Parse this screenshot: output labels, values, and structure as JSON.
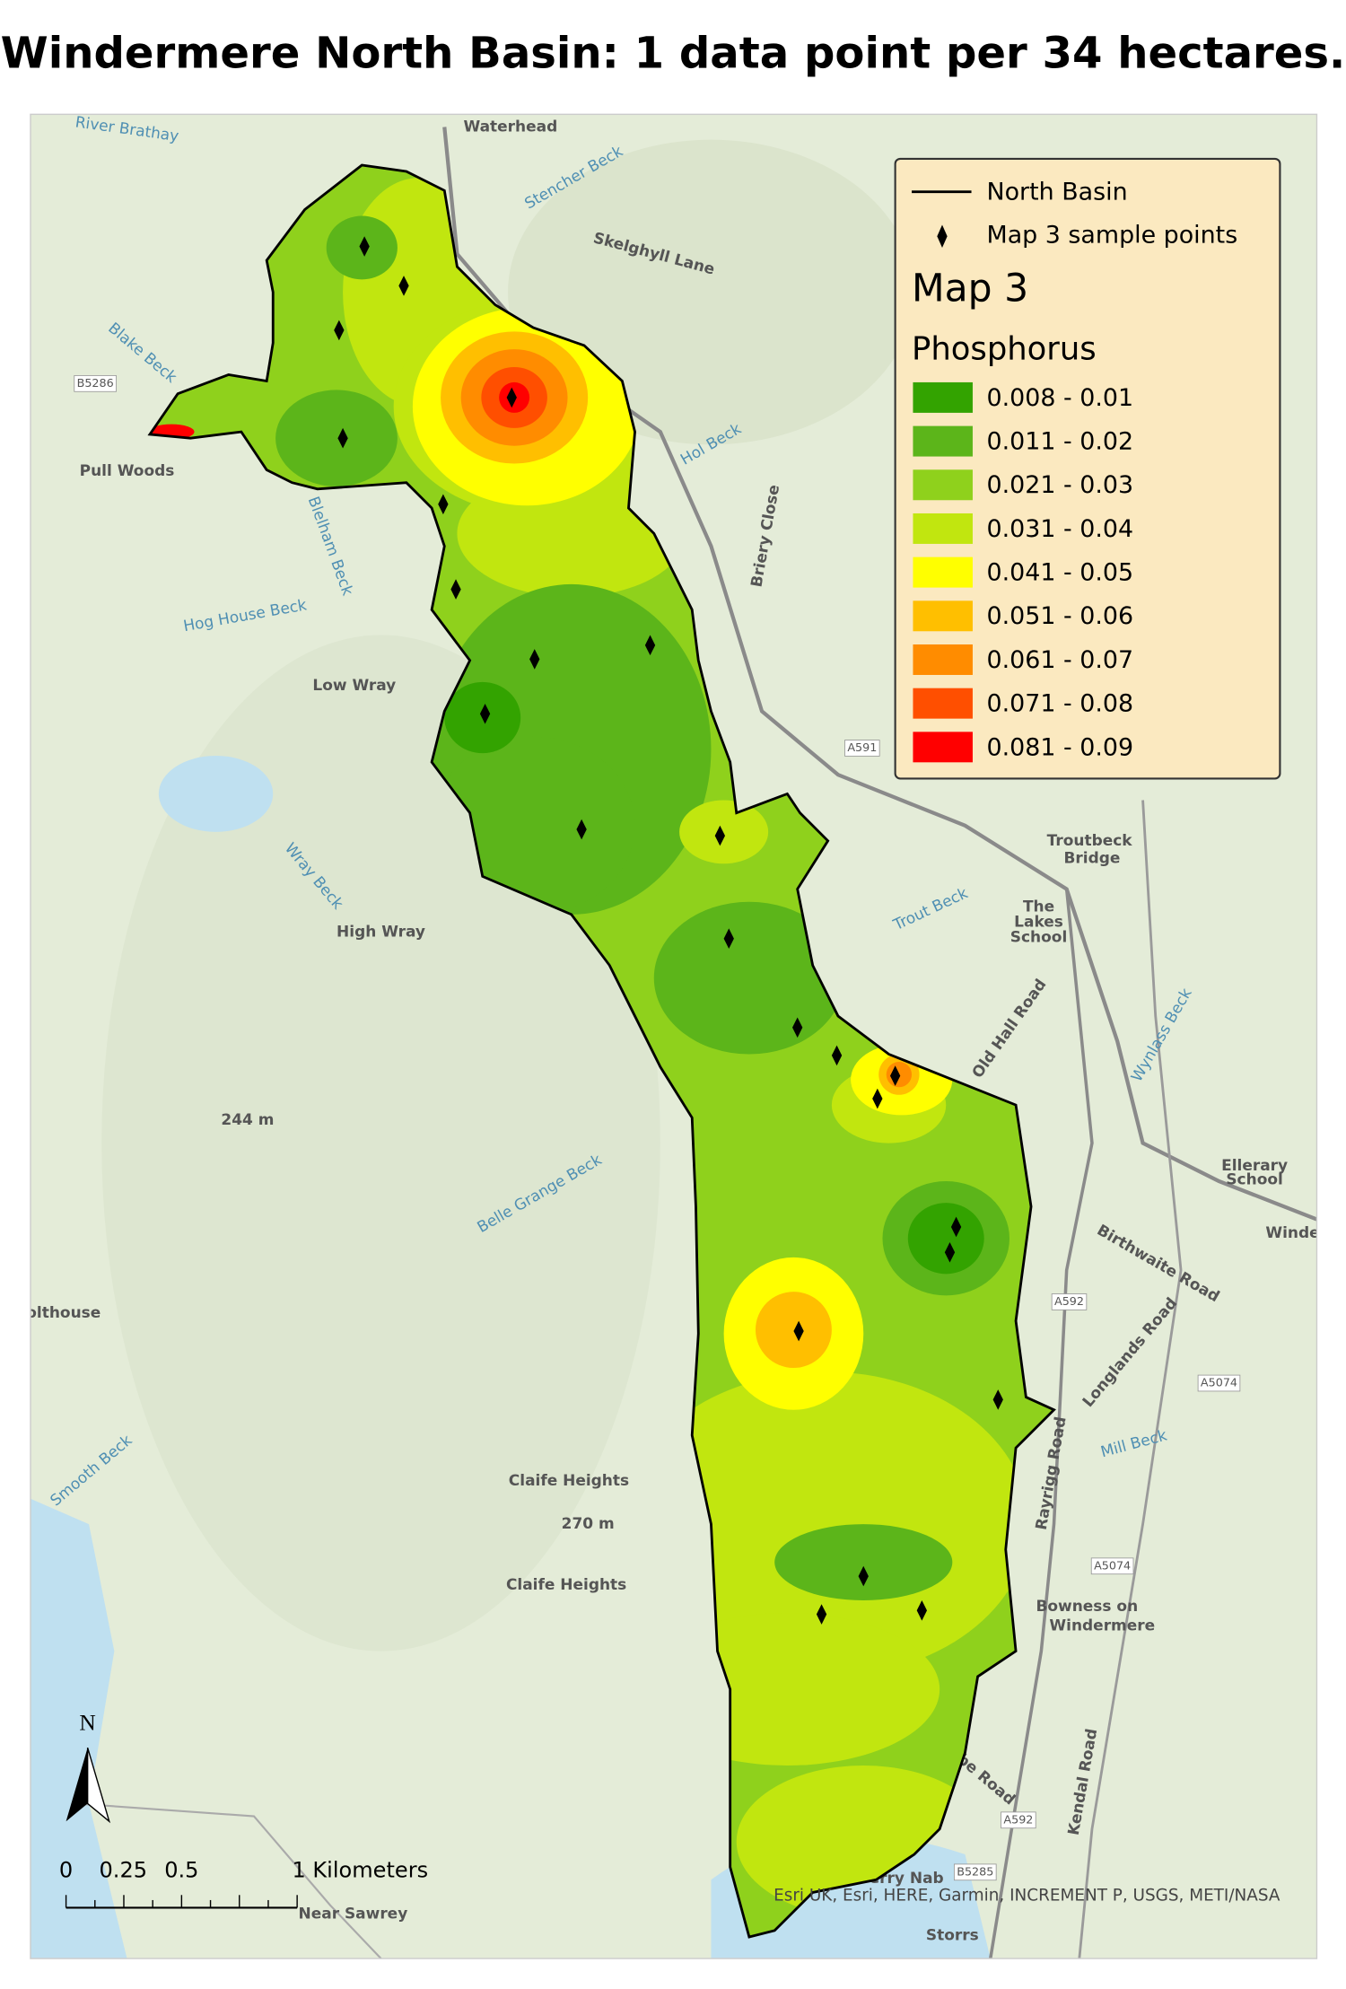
{
  "title": "Windermere North Basin: 1 data point per 34 hectares.",
  "legend": {
    "line_label": "North Basin",
    "points_label": "Map 3 sample points",
    "map_title": "Map 3",
    "field": "Phosphorus",
    "classes": [
      {
        "label": "0.008 - 0.01",
        "color": "#33a300"
      },
      {
        "label": "0.011 - 0.02",
        "color": "#5cb51a"
      },
      {
        "label": "0.021 - 0.03",
        "color": "#8fd11c"
      },
      {
        "label": "0.031 - 0.04",
        "color": "#c1e60f"
      },
      {
        "label": "0.041 - 0.05",
        "color": "#ffff00"
      },
      {
        "label": "0.051 - 0.06",
        "color": "#ffbf00"
      },
      {
        "label": "0.061 - 0.07",
        "color": "#ff8c00"
      },
      {
        "label": "0.071 - 0.08",
        "color": "#ff4f00"
      },
      {
        "label": "0.081 - 0.09",
        "color": "#ff0000"
      }
    ]
  },
  "north_arrow": "N",
  "scale_bar": {
    "labels": [
      "0",
      "0.25",
      "0.5",
      "1 Kilometers"
    ]
  },
  "attribution": "Esri UK, Esri, HERE, Garmin, INCREMENT P, USGS, METI/NASA",
  "place_labels": [
    {
      "text": "River Brathay",
      "kind": "water"
    },
    {
      "text": "Waterhead",
      "kind": "place"
    },
    {
      "text": "Stencher Beck",
      "kind": "water"
    },
    {
      "text": "Skelghyll Lane",
      "kind": "place"
    },
    {
      "text": "Blake Beck",
      "kind": "water"
    },
    {
      "text": "B5286",
      "kind": "road"
    },
    {
      "text": "Pull Woods",
      "kind": "place"
    },
    {
      "text": "Hol Beck",
      "kind": "water"
    },
    {
      "text": "Briery Close",
      "kind": "place"
    },
    {
      "text": "Blelham Beck",
      "kind": "water"
    },
    {
      "text": "Hog House Beck",
      "kind": "water"
    },
    {
      "text": "Low Wray",
      "kind": "place"
    },
    {
      "text": "A591",
      "kind": "road"
    },
    {
      "text": "Troutbeck",
      "kind": "place"
    },
    {
      "text": "Bridge",
      "kind": "place"
    },
    {
      "text": "The",
      "kind": "place"
    },
    {
      "text": "Lakes",
      "kind": "place"
    },
    {
      "text": "School",
      "kind": "place"
    },
    {
      "text": "Trout Beck",
      "kind": "water"
    },
    {
      "text": "Wray Beck",
      "kind": "water"
    },
    {
      "text": "High Wray",
      "kind": "place"
    },
    {
      "text": "Old Hall Road",
      "kind": "place"
    },
    {
      "text": "Wynlass Beck",
      "kind": "water"
    },
    {
      "text": "244 m",
      "kind": "place"
    },
    {
      "text": "Belle Grange Beck",
      "kind": "water"
    },
    {
      "text": "Ellerary",
      "kind": "place"
    },
    {
      "text": "School",
      "kind": "place"
    },
    {
      "text": "Winde",
      "kind": "place"
    },
    {
      "text": "Birthwaite Road",
      "kind": "place"
    },
    {
      "text": "olthouse",
      "kind": "place"
    },
    {
      "text": "A592",
      "kind": "road"
    },
    {
      "text": "Longlands Road",
      "kind": "place"
    },
    {
      "text": "A5074",
      "kind": "road"
    },
    {
      "text": "Smooth Beck",
      "kind": "water"
    },
    {
      "text": "Mill Beck",
      "kind": "water"
    },
    {
      "text": "Rayrigg Road",
      "kind": "place"
    },
    {
      "text": "Claife Heights",
      "kind": "place"
    },
    {
      "text": "270 m",
      "kind": "place"
    },
    {
      "text": "Claife Heights",
      "kind": "place"
    },
    {
      "text": "A5074",
      "kind": "road"
    },
    {
      "text": "Bowness on",
      "kind": "place"
    },
    {
      "text": "Windermere",
      "kind": "place"
    },
    {
      "text": "Glebe Road",
      "kind": "place"
    },
    {
      "text": "Kendal Road",
      "kind": "place"
    },
    {
      "text": "B5285",
      "kind": "road"
    },
    {
      "text": "Ferry Nab",
      "kind": "place"
    },
    {
      "text": "Near Sawrey",
      "kind": "place"
    },
    {
      "text": "Storrs",
      "kind": "place"
    },
    {
      "text": "A592",
      "kind": "road"
    }
  ]
}
